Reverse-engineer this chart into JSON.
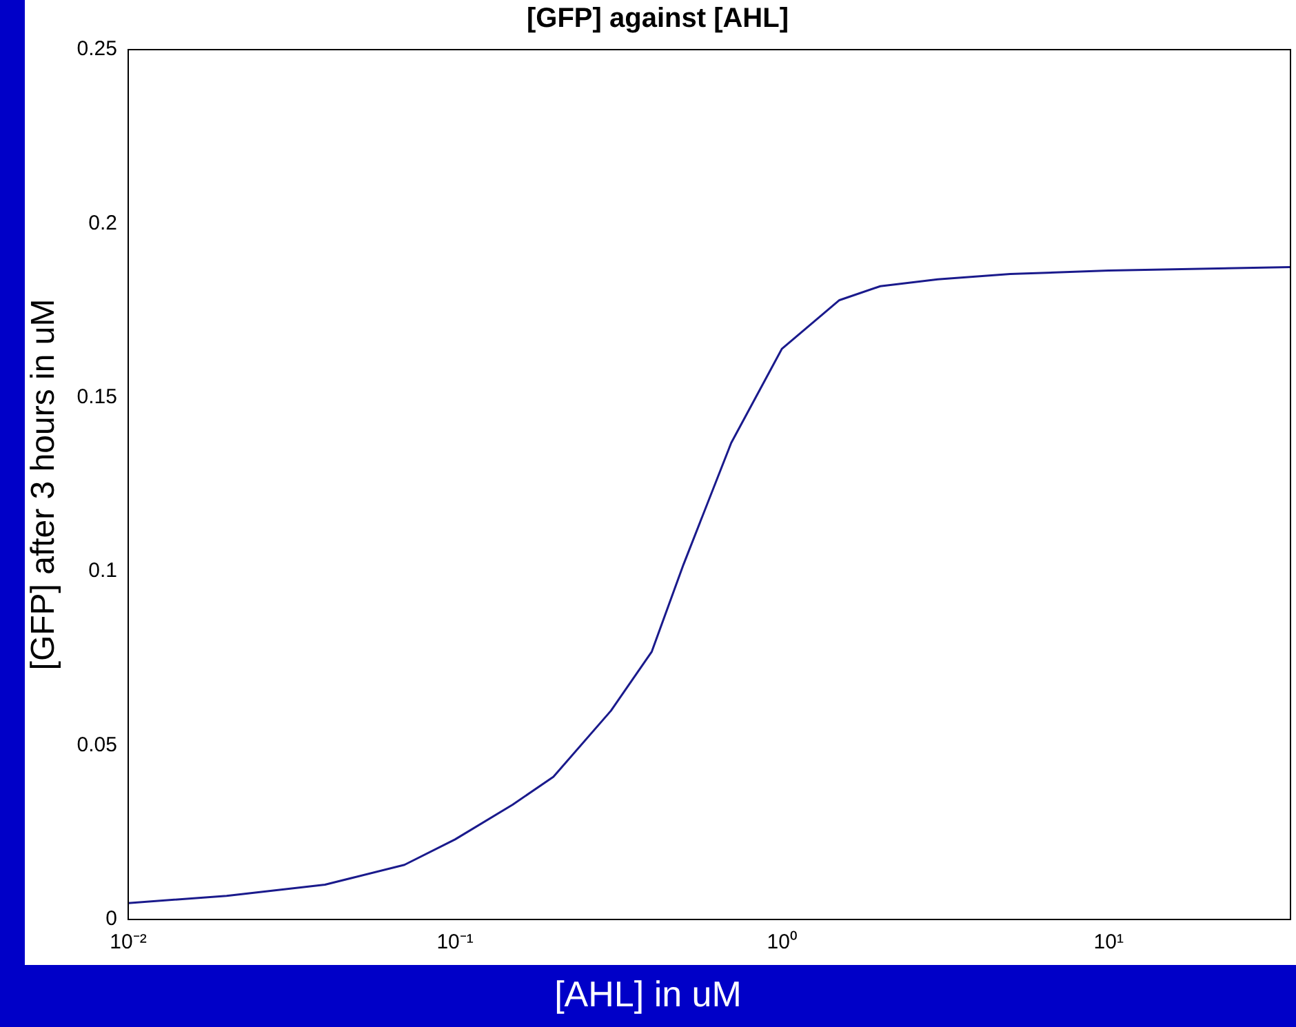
{
  "chart_data": {
    "type": "line",
    "title": "[GFP] against [AHL]",
    "xlabel": "[AHL] in uM",
    "ylabel": "[GFP] after 3 hours in uM",
    "x": [
      0.01,
      0.02,
      0.04,
      0.07,
      0.1,
      0.15,
      0.2,
      0.3,
      0.4,
      0.5,
      0.7,
      1,
      1.5,
      2,
      3,
      5,
      10,
      36
    ],
    "series": [
      {
        "color": "#1a1a8c",
        "values": [
          0.0047,
          0.0068,
          0.01,
          0.0157,
          0.023,
          0.033,
          0.041,
          0.06,
          0.077,
          0.102,
          0.137,
          0.164,
          0.178,
          0.182,
          0.184,
          0.1855,
          0.1865,
          0.1875
        ]
      }
    ],
    "log": "x",
    "xlim": [
      0.01,
      36
    ],
    "xticks": [
      {
        "value": 0.01,
        "label": "10⁻²"
      },
      {
        "value": 0.1,
        "label": "10⁻¹"
      },
      {
        "value": 1,
        "label": "10⁰"
      },
      {
        "value": 10,
        "label": "10¹"
      }
    ],
    "ylim": [
      0,
      0.25
    ],
    "yticks": [
      0,
      0.05,
      0.1,
      0.15,
      0.2,
      0.25
    ],
    "grid": false,
    "legend": false,
    "marker": "none",
    "line_style": "solid"
  }
}
